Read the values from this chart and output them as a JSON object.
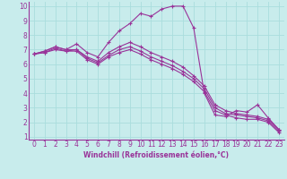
{
  "title": "",
  "xlabel": "Windchill (Refroidissement éolien,°C)",
  "bg_color": "#c8ecec",
  "line_color": "#993399",
  "grid_color": "#aadddd",
  "axis_color": "#993399",
  "xlim": [
    -0.5,
    23.5
  ],
  "ylim": [
    0.8,
    10.3
  ],
  "xticks": [
    0,
    1,
    2,
    3,
    4,
    5,
    6,
    7,
    8,
    9,
    10,
    11,
    12,
    13,
    14,
    15,
    16,
    17,
    18,
    19,
    20,
    21,
    22,
    23
  ],
  "yticks": [
    1,
    2,
    3,
    4,
    5,
    6,
    7,
    8,
    9,
    10
  ],
  "series": [
    [
      6.7,
      6.9,
      7.2,
      7.0,
      7.4,
      6.8,
      6.5,
      7.5,
      8.3,
      8.8,
      9.5,
      9.3,
      9.8,
      10.0,
      10.0,
      8.5,
      4.0,
      2.5,
      2.4,
      2.8,
      2.7,
      3.2,
      2.3,
      1.5
    ],
    [
      6.7,
      6.9,
      7.2,
      7.0,
      7.0,
      6.5,
      6.2,
      6.8,
      7.2,
      7.5,
      7.2,
      6.8,
      6.5,
      6.2,
      5.8,
      5.2,
      4.5,
      3.2,
      2.8,
      2.6,
      2.5,
      2.4,
      2.2,
      1.5
    ],
    [
      6.7,
      6.8,
      7.1,
      6.9,
      7.0,
      6.4,
      6.1,
      6.6,
      7.0,
      7.2,
      6.9,
      6.5,
      6.2,
      5.9,
      5.5,
      5.0,
      4.3,
      3.0,
      2.6,
      2.5,
      2.4,
      2.3,
      2.1,
      1.4
    ],
    [
      6.7,
      6.8,
      7.0,
      6.9,
      6.9,
      6.3,
      6.0,
      6.5,
      6.8,
      7.0,
      6.7,
      6.3,
      6.0,
      5.7,
      5.3,
      4.8,
      4.1,
      2.8,
      2.5,
      2.3,
      2.2,
      2.2,
      2.0,
      1.3
    ]
  ],
  "tick_fontsize": 5.5,
  "xlabel_fontsize": 5.5,
  "tick_label_color": "#993399"
}
